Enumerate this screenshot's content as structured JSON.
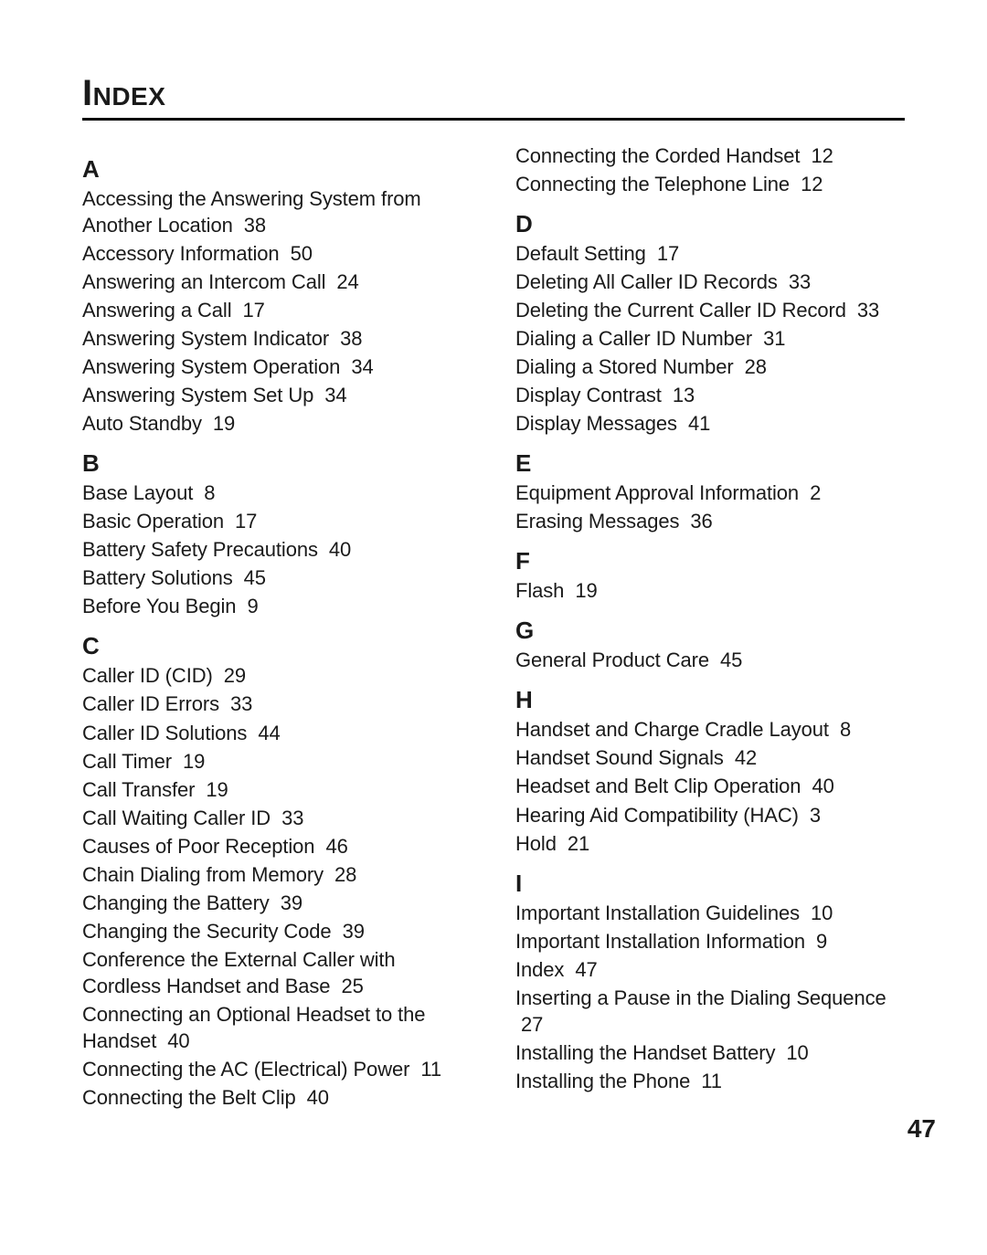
{
  "page_title": "Index",
  "page_number": "47",
  "colors": {
    "text": "#1a1a1a",
    "background": "#ffffff",
    "rule": "#000000"
  },
  "typography": {
    "title_fontsize": 40,
    "letter_fontsize": 26,
    "entry_fontsize": 22,
    "pagenum_fontsize": 28
  },
  "columns": [
    {
      "sections": [
        {
          "letter": "A",
          "entries": [
            {
              "title": "Accessing the Answering System from Another Location",
              "page": "38"
            },
            {
              "title": "Accessory Information",
              "page": "50"
            },
            {
              "title": "Answering an Intercom Call",
              "page": "24"
            },
            {
              "title": "Answering a Call",
              "page": "17"
            },
            {
              "title": "Answering System Indicator",
              "page": "38"
            },
            {
              "title": "Answering System Operation",
              "page": "34"
            },
            {
              "title": "Answering System Set Up",
              "page": "34"
            },
            {
              "title": "Auto Standby",
              "page": "19"
            }
          ]
        },
        {
          "letter": "B",
          "entries": [
            {
              "title": "Base Layout",
              "page": "8"
            },
            {
              "title": "Basic Operation",
              "page": "17"
            },
            {
              "title": "Battery Safety Precautions",
              "page": "40"
            },
            {
              "title": "Battery Solutions",
              "page": "45"
            },
            {
              "title": "Before You Begin",
              "page": "9"
            }
          ]
        },
        {
          "letter": "C",
          "entries": [
            {
              "title": "Caller ID (CID)",
              "page": "29"
            },
            {
              "title": "Caller ID Errors",
              "page": "33"
            },
            {
              "title": "Caller ID Solutions",
              "page": "44"
            },
            {
              "title": "Call Timer",
              "page": "19"
            },
            {
              "title": "Call Transfer",
              "page": "19"
            },
            {
              "title": "Call Waiting Caller ID",
              "page": "33"
            },
            {
              "title": "Causes of Poor Reception",
              "page": "46"
            },
            {
              "title": "Chain Dialing from Memory",
              "page": "28"
            },
            {
              "title": "Changing the Battery",
              "page": "39"
            },
            {
              "title": "Changing the Security Code",
              "page": "39"
            },
            {
              "title": "Conference the External Caller with Cordless Handset and Base",
              "page": "25"
            },
            {
              "title": "Connecting an Optional Headset to the Handset",
              "page": "40"
            },
            {
              "title": "Connecting the AC (Electrical) Power",
              "page": "11"
            },
            {
              "title": "Connecting the Belt Clip",
              "page": "40"
            }
          ]
        }
      ]
    },
    {
      "sections": [
        {
          "letter": "",
          "entries": [
            {
              "title": "Connecting the Corded Handset",
              "page": "12"
            },
            {
              "title": "Connecting the Telephone Line",
              "page": "12"
            }
          ]
        },
        {
          "letter": "D",
          "entries": [
            {
              "title": "Default Setting",
              "page": "17"
            },
            {
              "title": "Deleting All Caller ID Records",
              "page": "33"
            },
            {
              "title": "Deleting the Current Caller ID Record",
              "page": "33"
            },
            {
              "title": "Dialing a Caller ID Number",
              "page": "31"
            },
            {
              "title": "Dialing a Stored Number",
              "page": "28"
            },
            {
              "title": "Display Contrast",
              "page": "13"
            },
            {
              "title": "Display Messages",
              "page": "41"
            }
          ]
        },
        {
          "letter": "E",
          "entries": [
            {
              "title": "Equipment Approval Information",
              "page": "2"
            },
            {
              "title": "Erasing Messages",
              "page": "36"
            }
          ]
        },
        {
          "letter": "F",
          "entries": [
            {
              "title": "Flash",
              "page": "19"
            }
          ]
        },
        {
          "letter": "G",
          "entries": [
            {
              "title": "General Product Care",
              "page": "45"
            }
          ]
        },
        {
          "letter": "H",
          "entries": [
            {
              "title": "Handset and Charge Cradle Layout",
              "page": "8"
            },
            {
              "title": "Handset Sound Signals",
              "page": "42"
            },
            {
              "title": "Headset and Belt Clip Operation",
              "page": "40"
            },
            {
              "title": "Hearing Aid Compatibility (HAC)",
              "page": "3"
            },
            {
              "title": "Hold",
              "page": "21"
            }
          ]
        },
        {
          "letter": "I",
          "entries": [
            {
              "title": "Important Installation Guidelines",
              "page": "10"
            },
            {
              "title": "Important Installation Information",
              "page": "9"
            },
            {
              "title": "Index",
              "page": "47"
            },
            {
              "title": "Inserting a Pause in the Dialing Sequence",
              "page": "27"
            },
            {
              "title": "Installing the Handset Battery",
              "page": "10"
            },
            {
              "title": "Installing the Phone",
              "page": "11"
            }
          ]
        }
      ]
    }
  ]
}
